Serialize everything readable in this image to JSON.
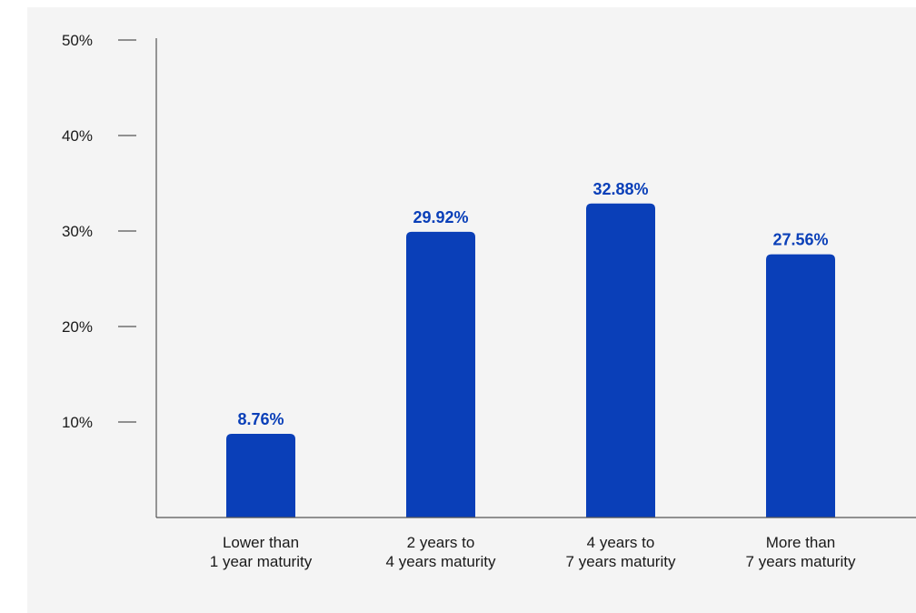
{
  "chart_data": {
    "type": "bar",
    "categories": [
      [
        "Lower than",
        "1 year maturity"
      ],
      [
        "2 years to",
        "4 years maturity"
      ],
      [
        "4 years to",
        "7 years maturity"
      ],
      [
        "More than",
        "7 years maturity"
      ]
    ],
    "values": [
      8.76,
      29.92,
      32.88,
      27.56
    ],
    "value_labels": [
      "8.76%",
      "29.92%",
      "32.88%",
      "27.56%"
    ],
    "y_ticks": [
      {
        "value": 10,
        "label": "10%"
      },
      {
        "value": 20,
        "label": "20%"
      },
      {
        "value": 30,
        "label": "30%"
      },
      {
        "value": 40,
        "label": "40%"
      },
      {
        "value": 50,
        "label": "50%"
      }
    ],
    "ylim": [
      0,
      50
    ],
    "grid": false,
    "legend": "none",
    "title": "",
    "xlabel": "",
    "ylabel": "",
    "colors": {
      "bar": "#0a3fb8",
      "value_label": "#0a3fb8",
      "axis": "#555555",
      "background": "#f4f4f4"
    }
  }
}
